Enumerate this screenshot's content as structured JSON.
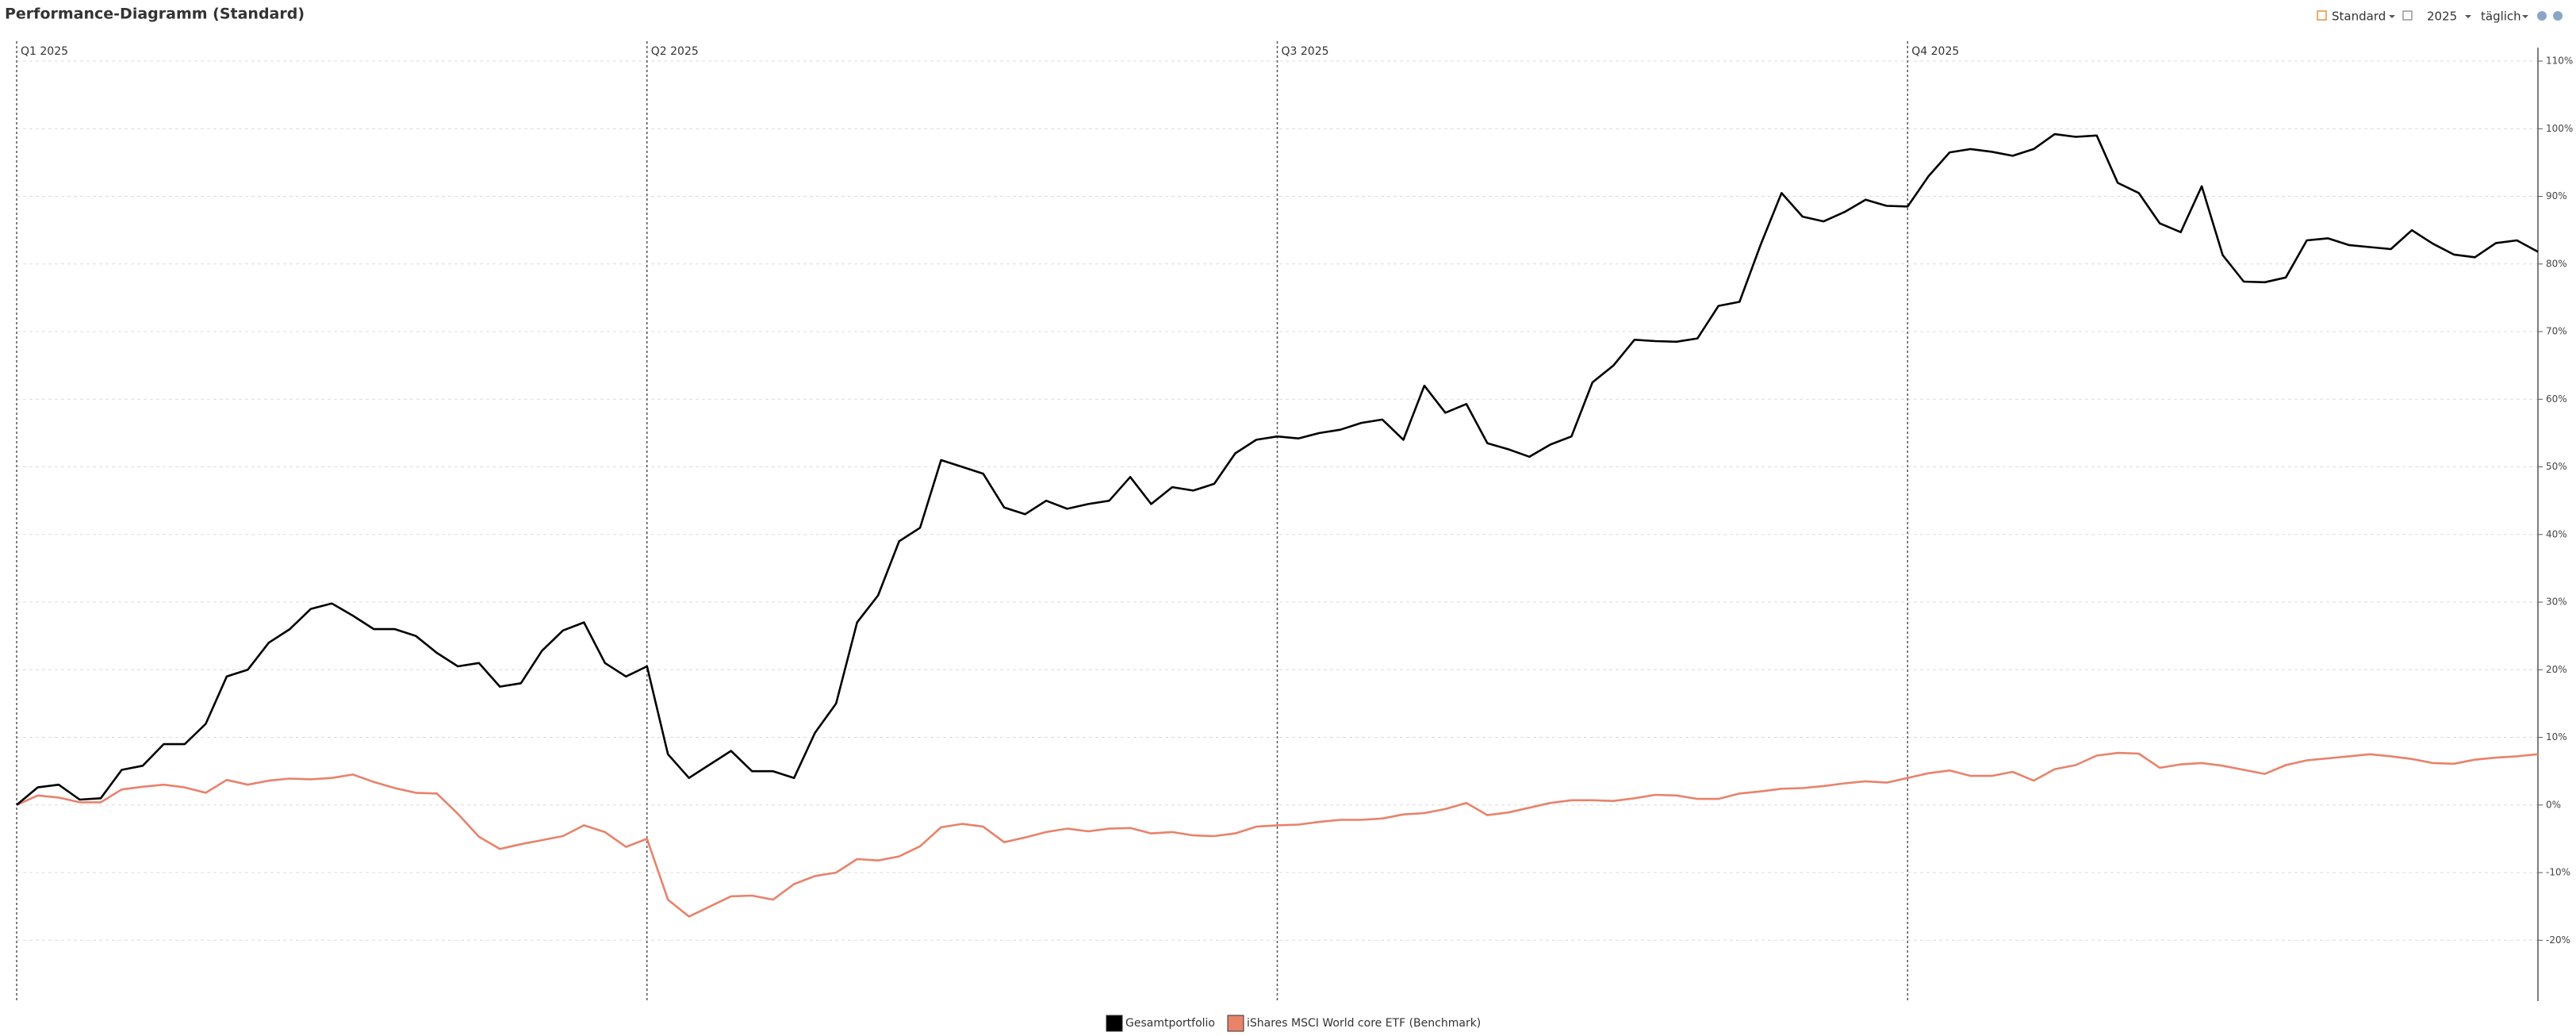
{
  "toolbar": {
    "view": "Standard",
    "year": "2025",
    "interval": "täglich"
  },
  "chart_data": {
    "type": "line",
    "title": "Performance-Diagramm (Standard)",
    "categories": [
      "Q1 2025",
      null,
      null,
      null,
      null,
      null,
      null,
      null,
      null,
      null,
      null,
      null,
      null,
      null,
      null,
      null,
      null,
      null,
      null,
      null,
      null,
      null,
      null,
      null,
      null,
      null,
      null,
      null,
      null,
      null,
      "Q2 2025",
      null,
      null,
      null,
      null,
      null,
      null,
      null,
      null,
      null,
      null,
      null,
      null,
      null,
      null,
      null,
      null,
      null,
      null,
      null,
      null,
      null,
      null,
      null,
      null,
      null,
      null,
      null,
      null,
      null,
      "Q3 2025",
      null,
      null,
      null,
      null,
      null,
      null,
      null,
      null,
      null,
      null,
      null,
      null,
      null,
      null,
      null,
      null,
      null,
      null,
      null,
      null,
      null,
      null,
      null,
      null,
      null,
      null,
      null,
      null,
      null,
      "Q4 2025",
      null,
      null,
      null,
      null,
      null,
      null,
      null,
      null,
      null,
      null,
      null,
      null,
      null,
      null,
      null,
      null,
      null,
      null,
      null,
      null,
      null,
      null,
      null,
      null,
      null,
      null,
      null,
      null,
      null,
      null
    ],
    "series": [
      {
        "name": "Gesamtportfolio",
        "color": "#000000",
        "values": [
          0,
          2.6,
          3,
          0.8,
          1,
          5.2,
          5.8,
          9,
          9,
          12,
          19,
          20,
          24,
          26,
          29,
          29.8,
          28,
          26,
          26,
          25,
          22.5,
          20.5,
          21,
          17.5,
          18,
          22.8,
          25.8,
          27,
          21,
          19,
          20.5,
          7.5,
          4,
          6,
          8,
          5,
          5,
          4,
          10.7,
          15,
          27,
          31,
          39,
          41,
          51,
          50,
          49,
          44,
          43,
          45,
          43.8,
          44.5,
          45,
          48.5,
          44.5,
          47,
          46.5,
          47.5,
          52,
          54,
          54.5,
          54.2,
          55,
          55.5,
          56.5,
          57,
          54,
          62,
          58,
          59.3,
          53.5,
          52.6,
          51.5,
          53.3,
          54.5,
          62.5,
          65,
          68.8,
          68.6,
          68.5,
          69,
          73.8,
          74.4,
          82.8,
          90.5,
          87,
          86.3,
          87.7,
          89.5,
          88.6,
          88.5,
          93,
          96.5,
          97,
          96.6,
          96,
          97,
          99.2,
          98.8,
          99,
          92,
          90.5,
          86,
          84.7,
          91.5,
          81.3,
          77.4,
          77.3,
          78,
          83.5,
          83.8,
          82.8,
          82.5,
          82.2,
          85,
          83,
          81.4,
          81,
          83.1,
          83.5,
          81.8
        ]
      },
      {
        "name": "iShares MSCI World core ETF  (Benchmark)",
        "color": "#e8826b",
        "values": [
          0,
          1.4,
          1.1,
          0.4,
          0.4,
          2.3,
          2.7,
          3,
          2.6,
          1.8,
          3.7,
          3,
          3.6,
          3.9,
          3.8,
          4,
          4.5,
          3.4,
          2.5,
          1.8,
          1.7,
          -1.3,
          -4.7,
          -6.5,
          -5.8,
          -5.2,
          -4.6,
          -3,
          -4,
          -6.2,
          -5,
          -14,
          -16.5,
          -15,
          -13.5,
          -13.4,
          -14,
          -11.7,
          -10.5,
          -10,
          -8,
          -8.2,
          -7.6,
          -6.1,
          -3.3,
          -2.8,
          -3.2,
          -5.5,
          -4.8,
          -4,
          -3.5,
          -3.9,
          -3.5,
          -3.4,
          -4.2,
          -4,
          -4.5,
          -4.6,
          -4.2,
          -3.2,
          -3,
          -2.9,
          -2.5,
          -2.2,
          -2.2,
          -2,
          -1.4,
          -1.2,
          -0.6,
          0.3,
          -1.5,
          -1.1,
          -0.4,
          0.3,
          0.7,
          0.7,
          0.6,
          1,
          1.5,
          1.4,
          0.9,
          0.9,
          1.7,
          2,
          2.4,
          2.5,
          2.8,
          3.2,
          3.5,
          3.3,
          4,
          4.7,
          5.1,
          4.3,
          4.3,
          4.9,
          3.6,
          5.3,
          5.9,
          7.3,
          7.7,
          7.6,
          5.5,
          6,
          6.2,
          5.8,
          5.2,
          4.6,
          5.9,
          6.6,
          6.9,
          7.2,
          7.5,
          7.2,
          6.8,
          6.2,
          6.1,
          6.7,
          7,
          7.2,
          7.5
        ]
      }
    ],
    "ylim": [
      -29,
      112
    ],
    "yticks": [
      {
        "value": -20,
        "label": "-20%"
      },
      {
        "value": -10,
        "label": "-10%"
      },
      {
        "value": 0,
        "label": "0%"
      },
      {
        "value": 10,
        "label": "10%"
      },
      {
        "value": 20,
        "label": "20%"
      },
      {
        "value": 30,
        "label": "30%"
      },
      {
        "value": 40,
        "label": "40%"
      },
      {
        "value": 50,
        "label": "50%"
      },
      {
        "value": 60,
        "label": "60%"
      },
      {
        "value": 70,
        "label": "70%"
      },
      {
        "value": 80,
        "label": "80%"
      },
      {
        "value": 90,
        "label": "90%"
      },
      {
        "value": 100,
        "label": "100%"
      },
      {
        "value": 110,
        "label": "110%"
      }
    ],
    "grid": true
  }
}
